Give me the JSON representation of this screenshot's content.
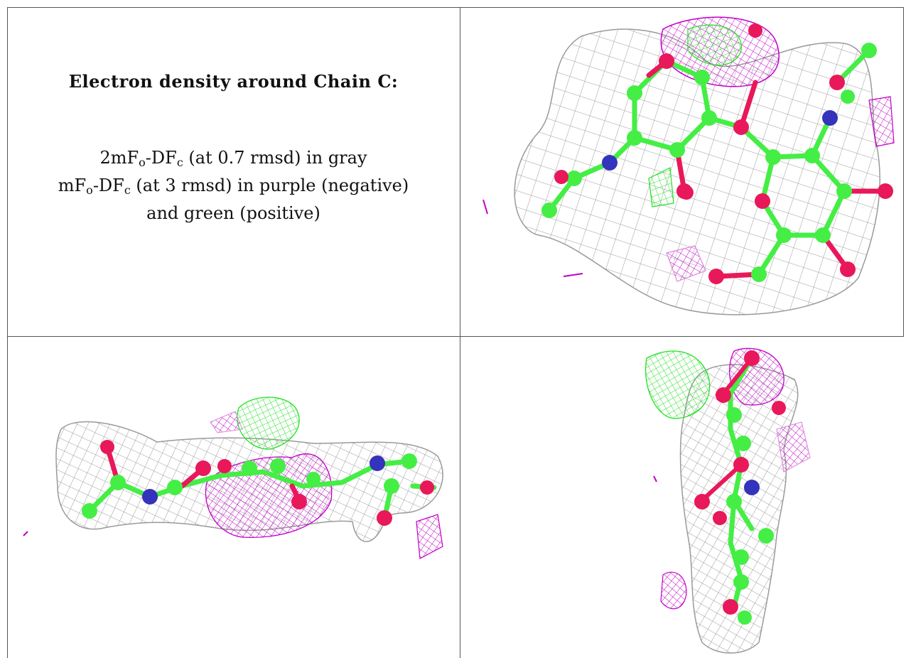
{
  "caption": {
    "title": "Electron density around Chain C:",
    "line1_pre": "2mF",
    "line1_sub1": "o",
    "line1_mid": "-DF",
    "line1_sub2": "c",
    "line1_post": " (at 0.7 rmsd) in gray",
    "line2_pre": "mF",
    "line2_sub1": "o",
    "line2_mid": "-DF",
    "line2_sub2": "c",
    "line2_post": " (at 3 rmsd) in purple (negative)",
    "line3": "and green (positive)"
  },
  "colors": {
    "mesh_gray": "#9a9a9a",
    "mesh_purple": "#c100c8",
    "mesh_green": "#22e022",
    "carbon": "#44ee44",
    "oxygen": "#e8185a",
    "nitrogen": "#3333bb",
    "grid_line": "#555555"
  },
  "panels": [
    {
      "name": "view-1",
      "icon": "molecule-density-view-icon"
    },
    {
      "name": "view-2",
      "icon": "molecule-density-side-view-icon"
    },
    {
      "name": "view-3",
      "icon": "molecule-density-end-view-icon"
    }
  ]
}
